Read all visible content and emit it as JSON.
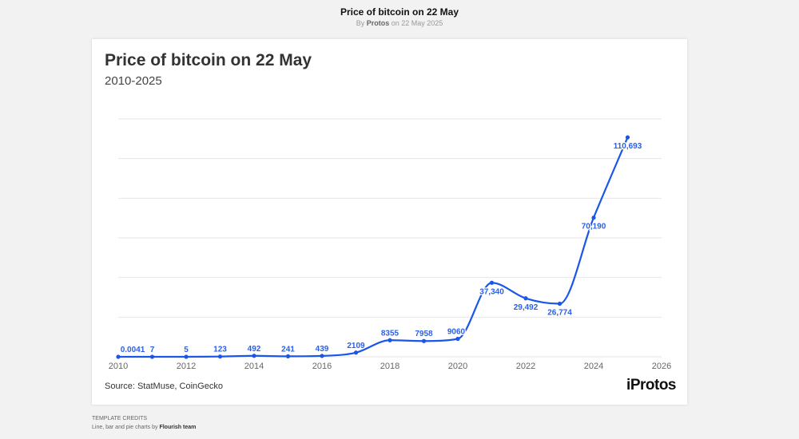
{
  "header": {
    "title": "Price of bitcoin on 22 May",
    "by_prefix": "By",
    "author": "Protos",
    "date_text": "on 22 May 2025"
  },
  "chart_data": {
    "type": "line",
    "title": "Price of bitcoin on 22 May",
    "subtitle": "2010-2025",
    "x": [
      2010,
      2011,
      2012,
      2013,
      2014,
      2015,
      2016,
      2017,
      2018,
      2019,
      2020,
      2021,
      2022,
      2023,
      2024,
      2025
    ],
    "values": [
      0.0041,
      7,
      5,
      123,
      492,
      241,
      439,
      2109,
      8355,
      7958,
      9060,
      37340,
      29492,
      26774,
      70190,
      110693
    ],
    "data_labels": [
      "0.0041",
      "7",
      "5",
      "123",
      "492",
      "241",
      "439",
      "2109",
      "8355",
      "7958",
      "9060",
      "37,340",
      "29,492",
      "26,774",
      "70,190",
      "110,693"
    ],
    "xlim": [
      2010,
      2026
    ],
    "ylim": [
      0,
      120000
    ],
    "y_gridlines": [
      0,
      20000,
      40000,
      60000,
      80000,
      100000,
      120000
    ],
    "x_ticks": [
      "2010",
      "2012",
      "2014",
      "2016",
      "2018",
      "2020",
      "2022",
      "2024",
      "2026"
    ],
    "grid": true,
    "legend": "none",
    "line_color": "#1a56e8",
    "source": "Source: StatMuse, CoinGecko"
  },
  "logo": "iProtos",
  "credits": {
    "heading": "TEMPLATE CREDITS",
    "text": "Line, bar and pie charts by",
    "team": "Flourish team"
  }
}
